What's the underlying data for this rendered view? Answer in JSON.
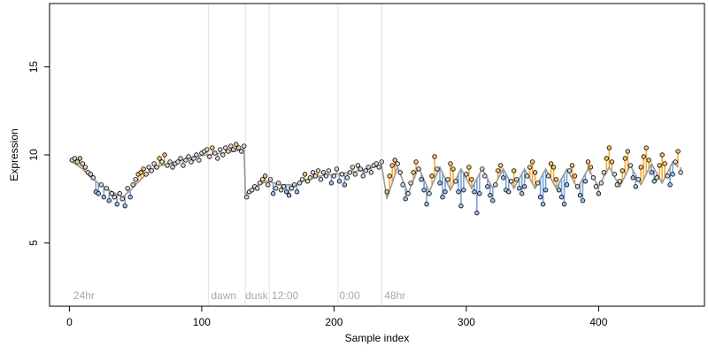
{
  "chart_data": {
    "type": "scatter",
    "title": "",
    "xlabel": "Sample index",
    "ylabel": "Expression",
    "xlim": [
      -15,
      480
    ],
    "ylim": [
      1.4,
      18.6
    ],
    "x_ticks": [
      0,
      100,
      200,
      300,
      400
    ],
    "x_tick_labels": [
      "0",
      "100",
      "200",
      "300",
      "400"
    ],
    "y_ticks": [
      5,
      10,
      15
    ],
    "y_tick_labels": [
      "5",
      "10",
      "15"
    ],
    "grid": false,
    "legend": "none",
    "colors": {
      "observed_point_fill": "#d8d8d8",
      "point_stroke": "#000000",
      "above_fit_fill": "#f2c46d",
      "below_fit_fill": "#9cc0e8",
      "above_residual": "#f4a93a",
      "below_residual": "#7aa3d6",
      "fit_line": "#9b9b9b",
      "phase_line": "#e2e2e2",
      "annotation_text": "#a8a8a8"
    },
    "phase_markers": [
      {
        "x": 105,
        "label": ""
      },
      {
        "x": 133,
        "label": ""
      },
      {
        "x": 151,
        "label": ""
      },
      {
        "x": 203,
        "label": ""
      },
      {
        "x": 236,
        "label": ""
      }
    ],
    "annotations": [
      {
        "x": 3,
        "label": "24hr"
      },
      {
        "x": 107,
        "label": "dawn"
      },
      {
        "x": 133,
        "label": "dusk"
      },
      {
        "x": 153,
        "label": "12:00"
      },
      {
        "x": 204,
        "label": "0:00"
      },
      {
        "x": 238,
        "label": "48hr"
      }
    ],
    "series": [
      {
        "role": "fitted",
        "points": [
          [
            0,
            9.7
          ],
          [
            10,
            9.2
          ],
          [
            15,
            8.8
          ],
          [
            20,
            8.5
          ],
          [
            30,
            8.0
          ],
          [
            40,
            7.6
          ],
          [
            45,
            7.9
          ],
          [
            50,
            8.3
          ],
          [
            58,
            8.9
          ],
          [
            65,
            9.3
          ],
          [
            75,
            9.5
          ],
          [
            85,
            9.7
          ],
          [
            95,
            9.9
          ],
          [
            105,
            10.0
          ],
          [
            115,
            10.1
          ],
          [
            125,
            10.2
          ],
          [
            130,
            10.3
          ],
          [
            132,
            10.3
          ],
          [
            133,
            7.8
          ],
          [
            140,
            8.2
          ],
          [
            150,
            8.5
          ],
          [
            160,
            8.3
          ],
          [
            170,
            8.3
          ],
          [
            180,
            8.6
          ],
          [
            190,
            8.8
          ],
          [
            200,
            8.9
          ],
          [
            210,
            9.0
          ],
          [
            220,
            9.1
          ],
          [
            230,
            9.3
          ],
          [
            236,
            9.4
          ],
          [
            240,
            7.5
          ],
          [
            248,
            9.3
          ],
          [
            256,
            7.8
          ],
          [
            264,
            9.3
          ],
          [
            272,
            7.9
          ],
          [
            280,
            9.3
          ],
          [
            288,
            8.0
          ],
          [
            296,
            9.2
          ],
          [
            304,
            8.1
          ],
          [
            312,
            9.2
          ],
          [
            320,
            8.1
          ],
          [
            328,
            9.2
          ],
          [
            336,
            8.1
          ],
          [
            344,
            9.2
          ],
          [
            352,
            8.1
          ],
          [
            360,
            9.2
          ],
          [
            368,
            8.1
          ],
          [
            376,
            9.2
          ],
          [
            384,
            8.1
          ],
          [
            392,
            9.2
          ],
          [
            400,
            8.2
          ],
          [
            408,
            9.3
          ],
          [
            416,
            8.2
          ],
          [
            424,
            9.4
          ],
          [
            432,
            8.3
          ],
          [
            440,
            9.5
          ],
          [
            448,
            8.4
          ],
          [
            456,
            9.6
          ],
          [
            460,
            9.3
          ]
        ]
      },
      {
        "role": "observed",
        "points": [
          [
            2,
            9.7
          ],
          [
            4,
            9.8
          ],
          [
            6,
            9.6
          ],
          [
            8,
            9.8
          ],
          [
            10,
            9.5
          ],
          [
            12,
            9.3
          ],
          [
            14,
            9.0
          ],
          [
            16,
            8.9
          ],
          [
            18,
            8.7
          ],
          [
            20,
            7.9
          ],
          [
            22,
            7.8
          ],
          [
            24,
            8.3
          ],
          [
            26,
            7.6
          ],
          [
            28,
            8.1
          ],
          [
            30,
            7.4
          ],
          [
            32,
            7.8
          ],
          [
            34,
            7.6
          ],
          [
            36,
            7.2
          ],
          [
            38,
            7.8
          ],
          [
            40,
            7.5
          ],
          [
            42,
            7.1
          ],
          [
            44,
            8.1
          ],
          [
            46,
            7.6
          ],
          [
            48,
            8.3
          ],
          [
            50,
            8.6
          ],
          [
            52,
            8.9
          ],
          [
            54,
            9.0
          ],
          [
            56,
            9.2
          ],
          [
            58,
            8.9
          ],
          [
            60,
            9.3
          ],
          [
            62,
            9.1
          ],
          [
            64,
            9.5
          ],
          [
            66,
            9.3
          ],
          [
            68,
            9.8
          ],
          [
            70,
            9.6
          ],
          [
            72,
            10.0
          ],
          [
            74,
            9.4
          ],
          [
            76,
            9.6
          ],
          [
            78,
            9.3
          ],
          [
            80,
            9.5
          ],
          [
            82,
            9.6
          ],
          [
            84,
            9.8
          ],
          [
            86,
            9.4
          ],
          [
            88,
            9.7
          ],
          [
            90,
            9.9
          ],
          [
            92,
            9.6
          ],
          [
            94,
            9.8
          ],
          [
            96,
            10.0
          ],
          [
            98,
            9.7
          ],
          [
            100,
            10.1
          ],
          [
            102,
            10.2
          ],
          [
            104,
            10.3
          ],
          [
            106,
            9.9
          ],
          [
            108,
            10.4
          ],
          [
            110,
            10.1
          ],
          [
            112,
            9.8
          ],
          [
            114,
            10.3
          ],
          [
            116,
            10.0
          ],
          [
            118,
            10.4
          ],
          [
            120,
            10.2
          ],
          [
            122,
            10.5
          ],
          [
            124,
            10.3
          ],
          [
            126,
            10.6
          ],
          [
            128,
            10.4
          ],
          [
            130,
            10.2
          ],
          [
            132,
            10.5
          ],
          [
            134,
            7.6
          ],
          [
            136,
            7.9
          ],
          [
            138,
            8.0
          ],
          [
            140,
            8.2
          ],
          [
            142,
            8.1
          ],
          [
            144,
            8.4
          ],
          [
            146,
            8.6
          ],
          [
            148,
            8.8
          ],
          [
            150,
            8.3
          ],
          [
            152,
            8.6
          ],
          [
            154,
            7.8
          ],
          [
            156,
            8.1
          ],
          [
            158,
            8.4
          ],
          [
            160,
            8.0
          ],
          [
            162,
            8.2
          ],
          [
            164,
            7.9
          ],
          [
            166,
            7.7
          ],
          [
            168,
            8.1
          ],
          [
            170,
            8.3
          ],
          [
            172,
            7.9
          ],
          [
            174,
            8.4
          ],
          [
            176,
            8.6
          ],
          [
            178,
            8.9
          ],
          [
            180,
            8.5
          ],
          [
            182,
            8.7
          ],
          [
            184,
            9.0
          ],
          [
            186,
            8.8
          ],
          [
            188,
            9.1
          ],
          [
            190,
            8.6
          ],
          [
            192,
            9.0
          ],
          [
            194,
            8.8
          ],
          [
            196,
            9.1
          ],
          [
            198,
            8.4
          ],
          [
            200,
            8.8
          ],
          [
            202,
            9.2
          ],
          [
            204,
            8.5
          ],
          [
            206,
            8.9
          ],
          [
            208,
            8.3
          ],
          [
            210,
            8.7
          ],
          [
            212,
            9.0
          ],
          [
            214,
            9.3
          ],
          [
            216,
            8.9
          ],
          [
            218,
            9.4
          ],
          [
            220,
            9.2
          ],
          [
            222,
            8.8
          ],
          [
            224,
            9.1
          ],
          [
            226,
            9.3
          ],
          [
            228,
            9.0
          ],
          [
            230,
            9.4
          ],
          [
            232,
            9.5
          ],
          [
            234,
            9.3
          ],
          [
            236,
            9.6
          ],
          [
            240,
            7.9
          ],
          [
            242,
            8.8
          ],
          [
            244,
            9.4
          ],
          [
            246,
            9.7
          ],
          [
            248,
            9.5
          ],
          [
            250,
            9.0
          ],
          [
            252,
            8.3
          ],
          [
            254,
            7.5
          ],
          [
            256,
            7.8
          ],
          [
            258,
            8.4
          ],
          [
            260,
            9.0
          ],
          [
            262,
            9.6
          ],
          [
            264,
            9.2
          ],
          [
            266,
            8.6
          ],
          [
            268,
            8.0
          ],
          [
            270,
            7.2
          ],
          [
            272,
            7.8
          ],
          [
            274,
            8.8
          ],
          [
            276,
            9.9
          ],
          [
            278,
            9.2
          ],
          [
            280,
            8.4
          ],
          [
            282,
            7.6
          ],
          [
            284,
            7.9
          ],
          [
            286,
            8.6
          ],
          [
            288,
            9.5
          ],
          [
            290,
            9.2
          ],
          [
            292,
            8.5
          ],
          [
            294,
            7.9
          ],
          [
            296,
            7.1
          ],
          [
            298,
            8.0
          ],
          [
            300,
            8.9
          ],
          [
            302,
            9.3
          ],
          [
            304,
            8.6
          ],
          [
            306,
            7.9
          ],
          [
            308,
            6.7
          ],
          [
            310,
            7.8
          ],
          [
            312,
            9.2
          ],
          [
            314,
            8.8
          ],
          [
            316,
            8.2
          ],
          [
            318,
            7.7
          ],
          [
            320,
            7.4
          ],
          [
            322,
            8.3
          ],
          [
            324,
            9.1
          ],
          [
            326,
            9.4
          ],
          [
            328,
            8.7
          ],
          [
            330,
            8.0
          ],
          [
            332,
            7.9
          ],
          [
            334,
            8.5
          ],
          [
            336,
            9.1
          ],
          [
            338,
            8.6
          ],
          [
            340,
            8.1
          ],
          [
            342,
            7.8
          ],
          [
            344,
            8.2
          ],
          [
            346,
            8.8
          ],
          [
            348,
            9.3
          ],
          [
            350,
            9.6
          ],
          [
            352,
            9.0
          ],
          [
            354,
            8.4
          ],
          [
            356,
            7.6
          ],
          [
            358,
            7.2
          ],
          [
            360,
            8.0
          ],
          [
            362,
            8.8
          ],
          [
            364,
            9.5
          ],
          [
            366,
            9.3
          ],
          [
            368,
            8.6
          ],
          [
            370,
            8.0
          ],
          [
            372,
            7.6
          ],
          [
            374,
            7.2
          ],
          [
            376,
            8.3
          ],
          [
            378,
            9.1
          ],
          [
            380,
            9.4
          ],
          [
            382,
            8.8
          ],
          [
            384,
            8.2
          ],
          [
            386,
            7.7
          ],
          [
            388,
            7.4
          ],
          [
            390,
            8.5
          ],
          [
            392,
            9.6
          ],
          [
            394,
            9.3
          ],
          [
            396,
            8.7
          ],
          [
            398,
            8.2
          ],
          [
            400,
            7.8
          ],
          [
            402,
            8.4
          ],
          [
            404,
            9.0
          ],
          [
            406,
            9.8
          ],
          [
            408,
            10.4
          ],
          [
            410,
            9.6
          ],
          [
            412,
            8.9
          ],
          [
            414,
            8.3
          ],
          [
            416,
            8.5
          ],
          [
            418,
            9.1
          ],
          [
            420,
            9.8
          ],
          [
            422,
            10.2
          ],
          [
            424,
            9.4
          ],
          [
            426,
            8.7
          ],
          [
            428,
            8.2
          ],
          [
            430,
            8.6
          ],
          [
            432,
            9.3
          ],
          [
            434,
            9.9
          ],
          [
            436,
            10.4
          ],
          [
            438,
            9.7
          ],
          [
            440,
            9.0
          ],
          [
            442,
            8.5
          ],
          [
            444,
            8.7
          ],
          [
            446,
            9.4
          ],
          [
            448,
            10.0
          ],
          [
            450,
            9.5
          ],
          [
            452,
            8.8
          ],
          [
            454,
            8.3
          ],
          [
            456,
            8.9
          ],
          [
            458,
            9.6
          ],
          [
            460,
            10.2
          ],
          [
            462,
            9.0
          ]
        ]
      }
    ]
  }
}
